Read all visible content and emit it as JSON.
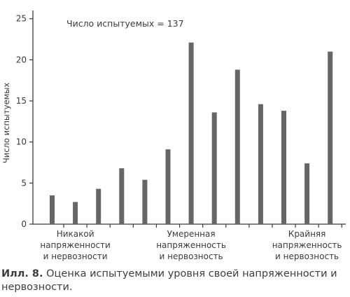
{
  "chart_data": {
    "type": "bar",
    "title": "",
    "xlabel": "",
    "ylabel": "Число испытуемых",
    "ylim": [
      0,
      26
    ],
    "yticks": [
      0,
      5,
      10,
      15,
      20,
      25
    ],
    "grid": false,
    "categories": [
      1,
      2,
      3,
      4,
      5,
      6,
      7,
      8,
      9,
      10,
      11,
      12,
      13
    ],
    "values": [
      3.5,
      2.7,
      4.3,
      6.8,
      5.4,
      9.1,
      22.1,
      13.6,
      18.8,
      14.6,
      13.8,
      7.4,
      21
    ],
    "bar_color": "#666666",
    "annotation": "Число испытуемых = 137",
    "category_labels": [
      {
        "lines": [
          "Никакой",
          "напряженности",
          "и нервозности"
        ],
        "at_category": 2
      },
      {
        "lines": [
          "Умеренная",
          "напряженность",
          "и нервозность"
        ],
        "at_category": 7
      },
      {
        "lines": [
          "Крайняя",
          "напряженность",
          "и нервозность"
        ],
        "at_category": 12
      }
    ]
  },
  "caption": {
    "label": "Илл. 8.",
    "text": " Оценка испытуемыми уровня своей напряженности и нервозности."
  }
}
